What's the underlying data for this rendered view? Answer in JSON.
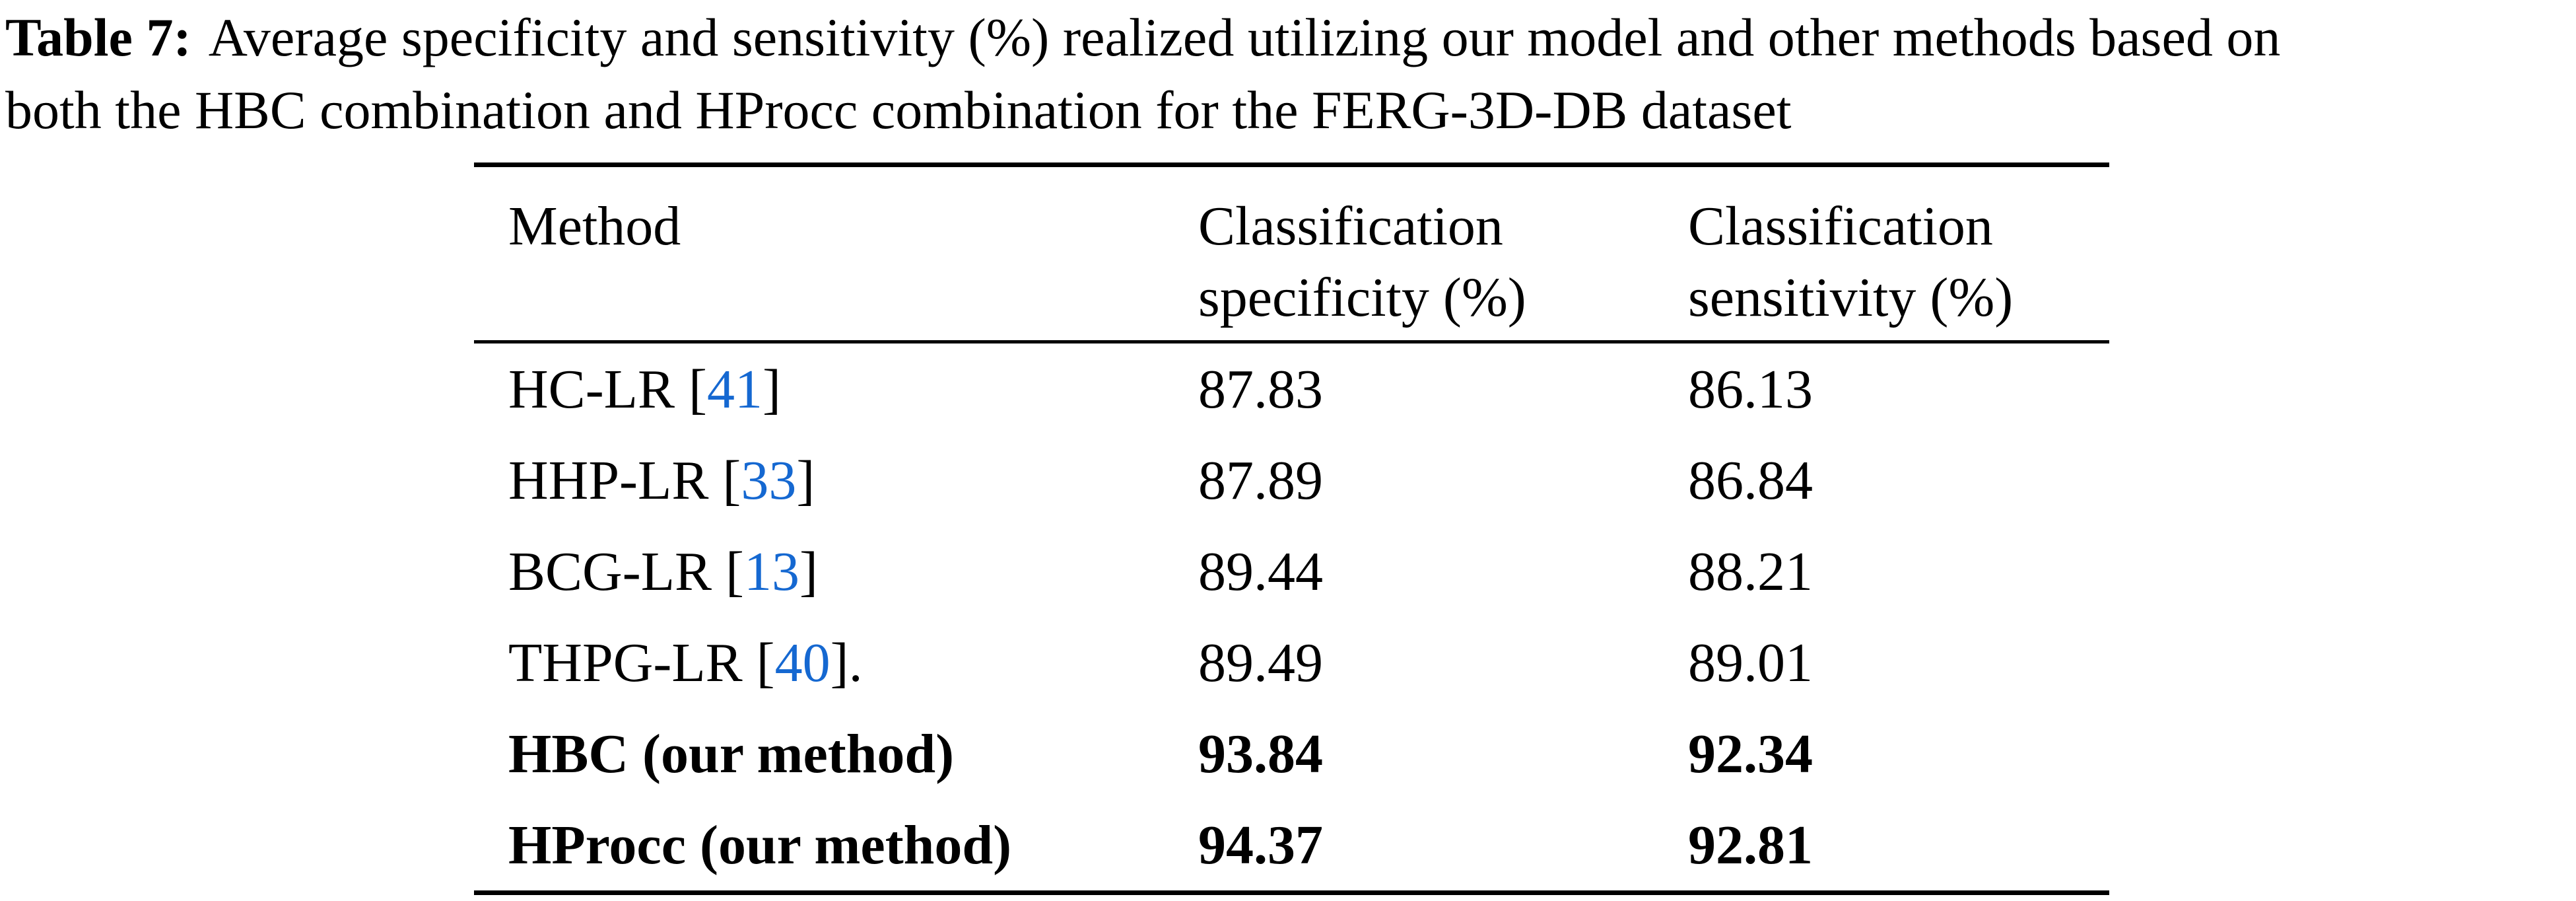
{
  "caption": {
    "label": "Table 7:",
    "line1_rest": "Average specificity and sensitivity (%) realized utilizing our model and other methods based on",
    "line2": "both the HBC combination and HProcc combination for the FERG-3D-DB dataset"
  },
  "colors": {
    "citation_blue": "#1568d1",
    "text": "#000000",
    "background": "#ffffff"
  },
  "table": {
    "headers": {
      "method": "Method",
      "specificity_line1": "Classification",
      "specificity_line2": "specificity (%)",
      "sensitivity_line1": "Classification",
      "sensitivity_line2": "sensitivity (%)"
    },
    "rows": [
      {
        "prefix": "HC-LR [",
        "cite": "41",
        "suffix": "]",
        "specificity": "87.83",
        "sensitivity": "86.13",
        "bold": false
      },
      {
        "prefix": "HHP-LR [",
        "cite": "33",
        "suffix": "]",
        "specificity": "87.89",
        "sensitivity": "86.84",
        "bold": false
      },
      {
        "prefix": "BCG-LR [",
        "cite": "13",
        "suffix": "]",
        "specificity": "89.44",
        "sensitivity": "88.21",
        "bold": false
      },
      {
        "prefix": "THPG-LR [",
        "cite": "40",
        "suffix": "].",
        "specificity": "89.49",
        "sensitivity": "89.01",
        "bold": false
      },
      {
        "prefix": "HBC (our method)",
        "cite": "",
        "suffix": "",
        "specificity": "93.84",
        "sensitivity": "92.34",
        "bold": true
      },
      {
        "prefix": "HProcc (our method)",
        "cite": "",
        "suffix": "",
        "specificity": "94.37",
        "sensitivity": "92.81",
        "bold": true
      }
    ]
  }
}
